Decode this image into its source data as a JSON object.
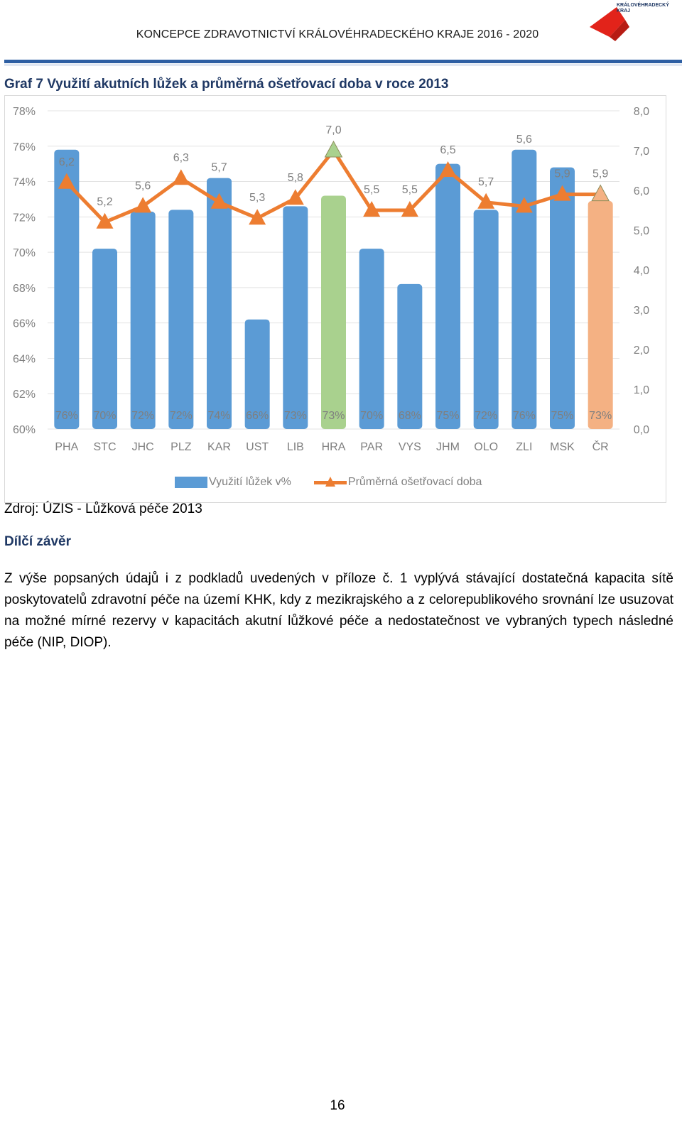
{
  "header": {
    "title": "KONCEPCE ZDRAVOTNICTVÍ KRÁLOVÉHRADECKÉHO KRAJE 2016 - 2020",
    "logo_text_line1": "KRÁLOVÉHRADECKÝ",
    "logo_text_line2": "KRAJ",
    "logo_color": "#e2231a"
  },
  "graph_title": "Graf 7 Využití akutních lůžek a průměrná ošetřovací doba v roce 2013",
  "chart_data": {
    "type": "bar",
    "categories": [
      "PHA",
      "STC",
      "JHC",
      "PLZ",
      "KAR",
      "UST",
      "LIB",
      "HRA",
      "PAR",
      "VYS",
      "JHM",
      "OLO",
      "ZLI",
      "MSK",
      "ČR"
    ],
    "series": [
      {
        "name": "Využití lůžek v%",
        "kind": "bar",
        "axis": "left",
        "values": [
          75.8,
          70.2,
          72.3,
          72.4,
          74.2,
          66.2,
          72.6,
          73.2,
          70.2,
          68.2,
          75.0,
          72.4,
          75.8,
          74.8,
          72.9
        ],
        "labels": [
          "76%",
          "70%",
          "72%",
          "72%",
          "74%",
          "66%",
          "73%",
          "73%",
          "70%",
          "68%",
          "75%",
          "72%",
          "76%",
          "75%",
          "73%"
        ],
        "color": "#5b9bd5",
        "highlight_colors": {
          "HRA": "#a9d18e",
          "ČR": "#f4b183"
        }
      },
      {
        "name": "Průměrná ošetřovací doba",
        "kind": "line",
        "axis": "right",
        "values": [
          6.2,
          5.2,
          5.6,
          6.3,
          5.7,
          5.3,
          5.8,
          7.0,
          5.5,
          5.5,
          6.5,
          5.7,
          5.6,
          5.9,
          5.9
        ],
        "labels": [
          "6,2",
          "5,2",
          "5,6",
          "6,3",
          "5,7",
          "5,3",
          "5,8",
          "7,0",
          "5,5",
          "5,5",
          "6,5",
          "5,7",
          "5,6",
          "5,9",
          "5,9"
        ],
        "color": "#ed7d31",
        "highlight_colors": {
          "HRA": "#a9d18e",
          "ČR": "#f4b183"
        }
      }
    ],
    "y_left": {
      "min": 60,
      "max": 78,
      "step": 2,
      "ticks": [
        "60%",
        "62%",
        "64%",
        "66%",
        "68%",
        "70%",
        "72%",
        "74%",
        "76%",
        "78%"
      ]
    },
    "y_right": {
      "min": 0,
      "max": 8,
      "step": 1,
      "ticks": [
        "0,0",
        "1,0",
        "2,0",
        "3,0",
        "4,0",
        "5,0",
        "6,0",
        "7,0",
        "8,0"
      ]
    },
    "grid": true,
    "legend_position": "bottom"
  },
  "source": "Zdroj: ÚZIS - Lůžková péče 2013",
  "conclusion_heading": "Dílčí závěr",
  "paragraph": "Z výše popsaných údajů i z podkladů uvedených v příloze č. 1 vyplývá stávající dostatečná kapacita sítě poskytovatelů zdravotní péče na území KHK, kdy z mezikrajského a z celorepublikového srovnání lze usuzovat na možné mírné rezervy v kapacitách akutní lůžkové péče a nedostatečnost ve vybraných typech následné péče (NIP, DIOP).",
  "page_number": "16"
}
